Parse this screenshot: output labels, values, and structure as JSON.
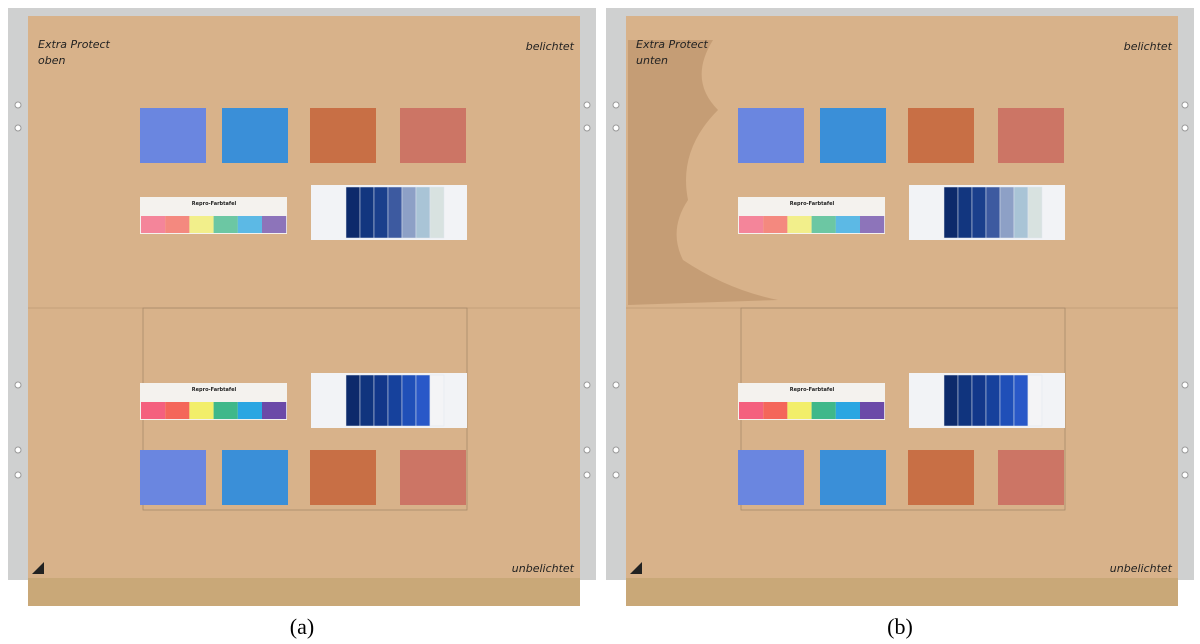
{
  "panels": [
    {
      "note": [
        "Extra Protect",
        "oben"
      ],
      "top_right": "belichtet",
      "bottom_right": "unbelichtet",
      "chart_label_top": "Repro-Farbtafel",
      "chart_label_bottom": "Repro-Farbtafel",
      "caption": "(a)"
    },
    {
      "note": [
        "Extra Protect",
        "unten"
      ],
      "top_right": "belichtet",
      "bottom_right": "unbelichtet",
      "chart_label_top": "Repro-Farbtafel",
      "chart_label_bottom": "Repro-Farbtafel",
      "caption": "(b)"
    }
  ]
}
